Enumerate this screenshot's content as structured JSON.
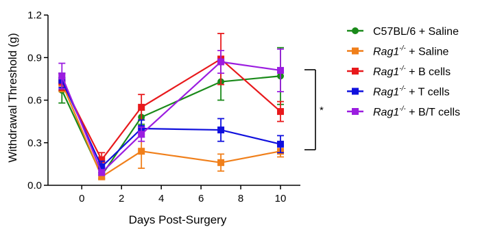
{
  "chart_data": {
    "type": "line",
    "xlabel": "Days Post-Surgery",
    "ylabel": "Withdrawal Threshold (g)",
    "xlim": [
      -1.7,
      11
    ],
    "ylim": [
      0,
      1.2
    ],
    "xticks": [
      0,
      2,
      4,
      6,
      8,
      10
    ],
    "yticks": [
      0.0,
      0.3,
      0.6,
      0.9,
      1.2
    ],
    "ytick_labels": [
      "0.0",
      "0.3",
      "0.6",
      "0.9",
      "1.2"
    ],
    "x": [
      -1,
      1,
      3,
      7,
      10
    ],
    "series": [
      {
        "name": "C57BL/6 + Saline",
        "legend_main": "C57BL/6",
        "legend_sup": "",
        "legend_suffix": " + Saline",
        "italic": false,
        "color": "#1a8a1a",
        "marker": "circle",
        "values": [
          0.67,
          0.07,
          0.48,
          0.73,
          0.77
        ],
        "errors": [
          0.09,
          0.02,
          0.05,
          0.13,
          0.2
        ]
      },
      {
        "name": "Rag1-/- + Saline",
        "legend_main": "Rag1",
        "legend_sup": "-/-",
        "legend_suffix": " + Saline",
        "italic": true,
        "color": "#f07f1a",
        "marker": "square",
        "values": [
          0.72,
          0.06,
          0.24,
          0.16,
          0.24
        ],
        "errors": [
          0.06,
          0.02,
          0.12,
          0.06,
          0.04
        ]
      },
      {
        "name": "Rag1-/- + B cells",
        "legend_main": "Rag1",
        "legend_sup": "-/-",
        "legend_suffix": " + B cells",
        "italic": true,
        "color": "#e8191c",
        "marker": "square",
        "values": [
          0.73,
          0.18,
          0.55,
          0.89,
          0.52
        ],
        "errors": [
          0.06,
          0.05,
          0.09,
          0.18,
          0.07
        ]
      },
      {
        "name": "Rag1-/- + T cells",
        "legend_main": "Rag1",
        "legend_sup": "-/-",
        "legend_suffix": " + T cells",
        "italic": true,
        "color": "#1010dd",
        "marker": "square",
        "values": [
          0.74,
          0.13,
          0.4,
          0.39,
          0.29
        ],
        "errors": [
          0.05,
          0.04,
          0.06,
          0.08,
          0.06
        ]
      },
      {
        "name": "Rag1-/- + B/T cells",
        "legend_main": "Rag1",
        "legend_sup": "-/-",
        "legend_suffix": " + B/T cells",
        "italic": true,
        "color": "#9b1de0",
        "marker": "square",
        "values": [
          0.77,
          0.09,
          0.36,
          0.87,
          0.81
        ],
        "errors": [
          0.09,
          0.02,
          0.05,
          0.08,
          0.15
        ]
      }
    ],
    "significance": "*",
    "legend_position": "right"
  }
}
